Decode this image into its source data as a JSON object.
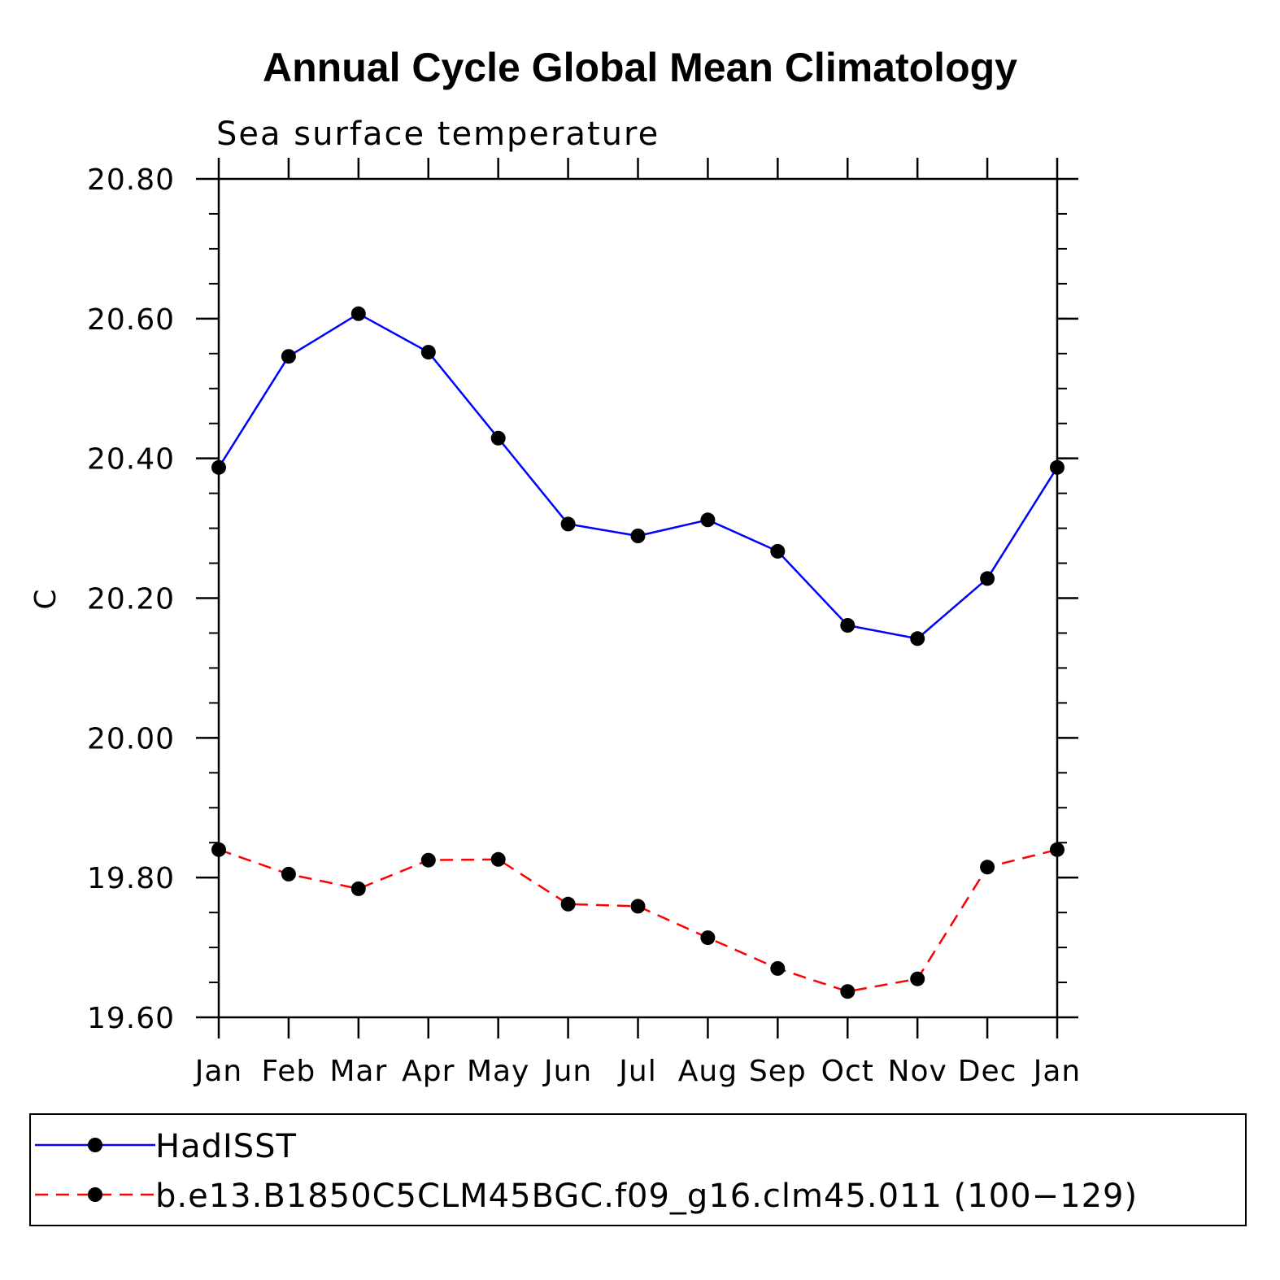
{
  "chart_data": {
    "type": "line",
    "title": "Annual Cycle Global Mean Climatology",
    "subtitle": "Sea surface temperature",
    "xlabel": "",
    "ylabel": "C",
    "categories": [
      "Jan",
      "Feb",
      "Mar",
      "Apr",
      "May",
      "Jun",
      "Jul",
      "Aug",
      "Sep",
      "Oct",
      "Nov",
      "Dec",
      "Jan"
    ],
    "ylim": [
      19.6,
      20.8
    ],
    "yticks": [
      "19.60",
      "19.80",
      "20.00",
      "20.20",
      "20.40",
      "20.60",
      "20.80"
    ],
    "ytick_values": [
      19.6,
      19.8,
      20.0,
      20.2,
      20.4,
      20.6,
      20.8
    ],
    "grid": false,
    "legend_position": "bottom",
    "series": [
      {
        "name": "HadISST",
        "color": "#0000ff",
        "dash": "solid",
        "marker": "circle",
        "values": [
          20.387,
          20.546,
          20.607,
          20.552,
          20.429,
          20.306,
          20.289,
          20.312,
          20.267,
          20.161,
          20.142,
          20.228,
          20.387
        ]
      },
      {
        "name": "b.e13.B1850C5CLM45BGC.f09_g16.clm45.011 (100−129)",
        "color": "#ff0000",
        "dash": "dashed",
        "marker": "circle",
        "values": [
          19.84,
          19.805,
          19.784,
          19.825,
          19.826,
          19.762,
          19.759,
          19.714,
          19.67,
          19.637,
          19.655,
          19.815,
          19.84
        ]
      }
    ]
  }
}
